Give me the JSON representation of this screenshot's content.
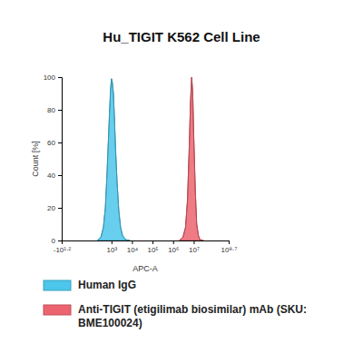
{
  "chart_data": {
    "type": "area",
    "title": "Hu_TIGIT K562 Cell Line",
    "x_label": "APC-A",
    "y_label": "Count [%]",
    "log": "x",
    "xlim": [
      -15.85,
      501187234
    ],
    "xticks": [
      {
        "value": -15.85,
        "label": "-10¹·²"
      },
      {
        "value": 1000,
        "label": "10³"
      },
      {
        "value": 10000,
        "label": "10⁴"
      },
      {
        "value": 100000,
        "label": "10⁵"
      },
      {
        "value": 1000000,
        "label": "10⁶"
      },
      {
        "value": 10000000,
        "label": "10⁷"
      },
      {
        "value": 501187234,
        "label": "10⁸·⁷"
      }
    ],
    "ylim": [
      0,
      100
    ],
    "yticks": [
      0,
      20,
      40,
      60,
      80,
      100
    ],
    "legend": "bottom",
    "series": [
      {
        "name": "Human IgG",
        "color": "#4cc6ea",
        "x": [
          200,
          300,
          400,
          500,
          600,
          700,
          800,
          900,
          1000,
          1100,
          1250,
          1400,
          1600,
          1900,
          2300,
          2800,
          3500,
          5000,
          8000
        ],
        "values": [
          0,
          2,
          8,
          20,
          40,
          60,
          78,
          92,
          99,
          97,
          90,
          75,
          55,
          35,
          18,
          8,
          3,
          0.5,
          0
        ]
      },
      {
        "name": "Anti-TIGIT (etigilimab biosimilar) mAb (SKU: BME100024)",
        "color": "#ec6470",
        "x": [
          2000000,
          3000000,
          4000000,
          5000000,
          6000000,
          7000000,
          8000000,
          9000000,
          10000000,
          12000000,
          14000000,
          17000000,
          20000000,
          30000000
        ],
        "values": [
          0,
          2,
          8,
          25,
          55,
          85,
          100,
          90,
          65,
          30,
          10,
          3,
          0.5,
          0
        ]
      }
    ]
  }
}
